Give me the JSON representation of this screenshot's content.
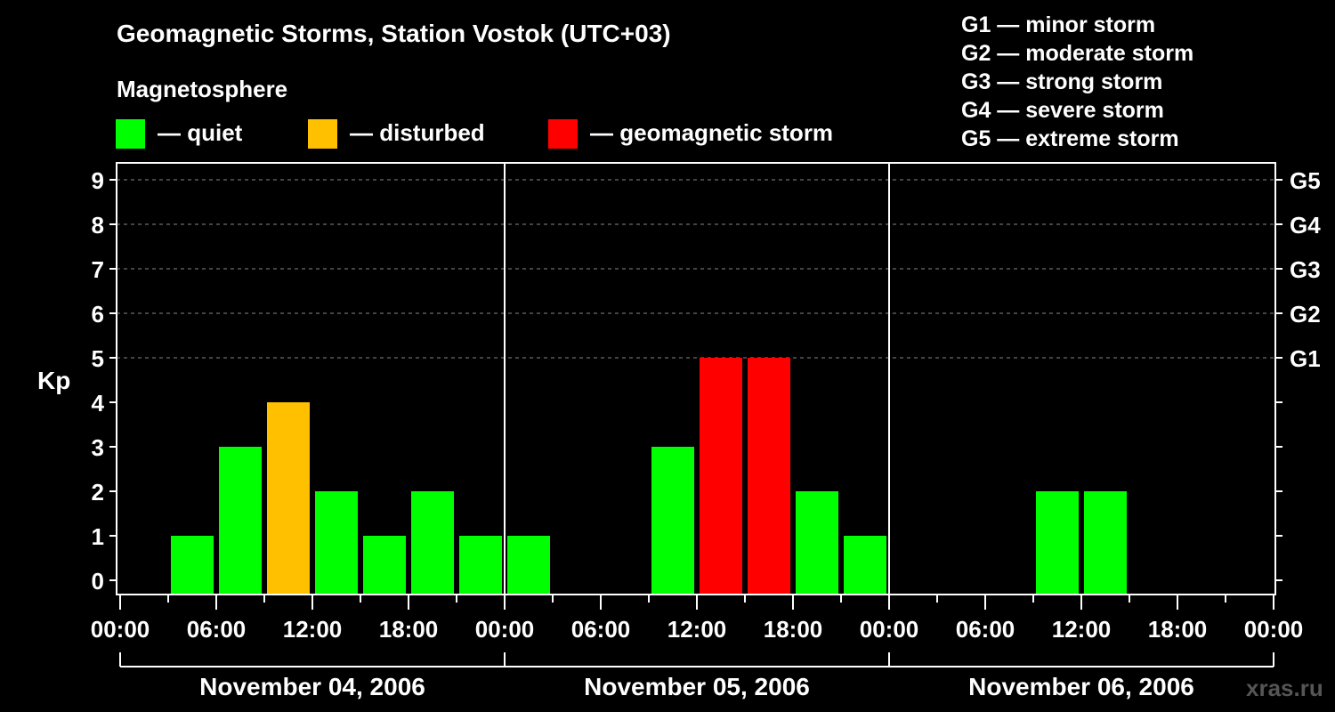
{
  "chart_data": {
    "type": "bar",
    "title": "Geomagnetic Storms, Station Vostok (UTC+03)",
    "subtitle": "Magnetosphere",
    "ylabel": "Kp",
    "ylim": [
      0,
      9
    ],
    "yticks": [
      "0",
      "1",
      "2",
      "3",
      "4",
      "5",
      "6",
      "7",
      "8",
      "9"
    ],
    "right_ticks": [
      {
        "kp": 5,
        "label": "G1"
      },
      {
        "kp": 6,
        "label": "G2"
      },
      {
        "kp": 7,
        "label": "G3"
      },
      {
        "kp": 8,
        "label": "G4"
      },
      {
        "kp": 9,
        "label": "G5"
      }
    ],
    "xticks": [
      "00:00",
      "06:00",
      "12:00",
      "18:00",
      "00:00",
      "06:00",
      "12:00",
      "18:00",
      "00:00",
      "06:00",
      "12:00",
      "18:00",
      "00:00"
    ],
    "days": [
      "November 04, 2006",
      "November 05, 2006",
      "November 06, 2006"
    ],
    "interval_hours": 3,
    "values": [
      0,
      1,
      3,
      4,
      2,
      1,
      2,
      1,
      1,
      0,
      0,
      3,
      5,
      5,
      2,
      1,
      0,
      0,
      0,
      2,
      2,
      0,
      0,
      0
    ],
    "grid": "dashed at Kp 5-9",
    "legend": [
      {
        "label": "— quiet",
        "color": "#00ff00"
      },
      {
        "label": "— disturbed",
        "color": "#ffc000"
      },
      {
        "label": "— geomagnetic storm",
        "color": "#ff0000"
      }
    ],
    "scale_legend": [
      "G1 — minor storm",
      "G2 — moderate storm",
      "G3 — strong storm",
      "G4 — severe storm",
      "G5 — extreme storm"
    ],
    "watermark": "xras.ru"
  }
}
